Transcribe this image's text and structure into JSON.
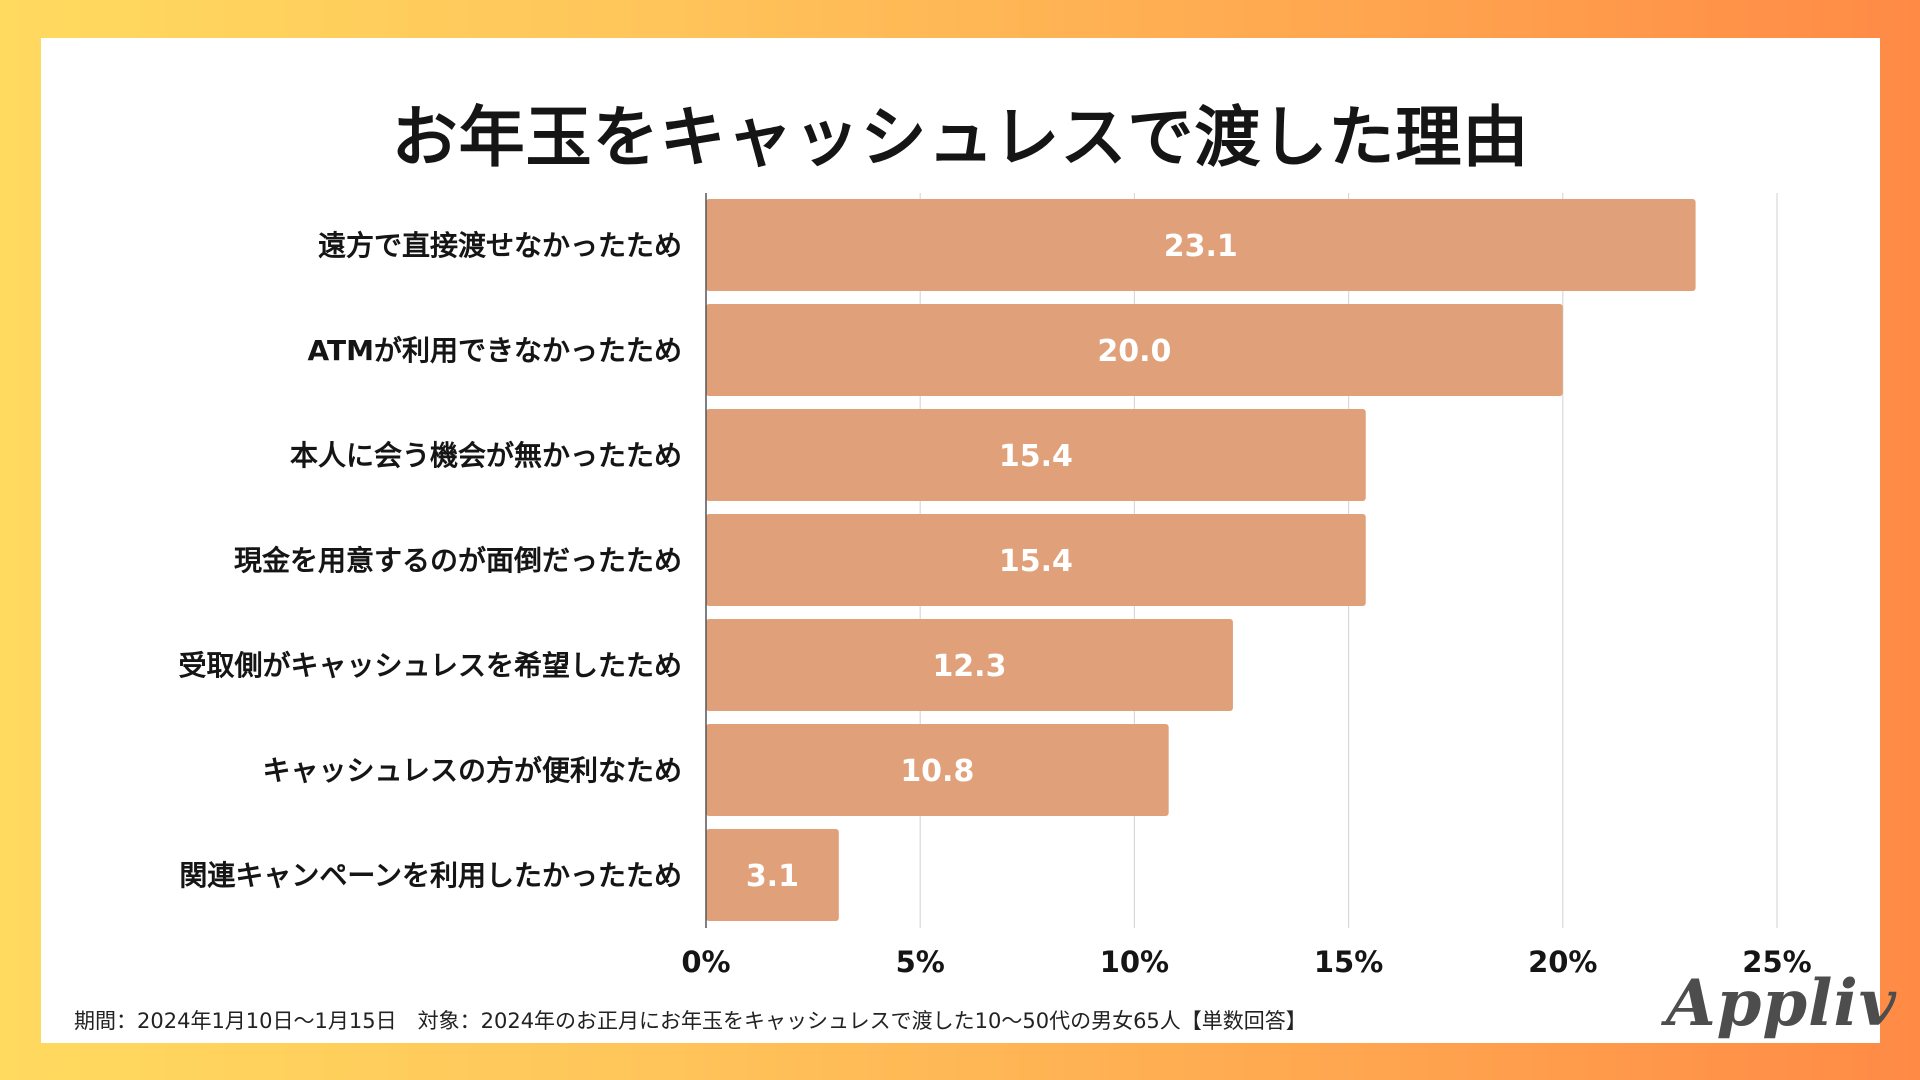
{
  "title": "お年玉をキャッシュレスで渡した理由",
  "footnote": "期間：2024年1月10日〜1月15日　対象：2024年のお正月にお年玉をキャッシュレスで渡した10〜50代の男女65人【単数回答】",
  "logo_text": "Appliv",
  "colors": {
    "bar": "#e0a07a",
    "bar_label": "#ffffff",
    "grid": "#d9d9d9",
    "axis": "#555555",
    "text": "#151515"
  },
  "chart_data": {
    "type": "bar",
    "orientation": "horizontal",
    "title": "お年玉をキャッシュレスで渡した理由",
    "categories": [
      "遠方で直接渡せなかったため",
      "ATMが利用できなかったため",
      "本人に会う機会が無かったため",
      "現金を用意するのが面倒だったため",
      "受取側がキャッシュレスを希望したため",
      "キャッシュレスの方が便利なため",
      "関連キャンペーンを利用したかったため"
    ],
    "values": [
      23.1,
      20.0,
      15.4,
      15.4,
      12.3,
      10.8,
      3.1
    ],
    "value_labels": [
      "23.1",
      "20.0",
      "15.4",
      "15.4",
      "12.3",
      "10.8",
      "3.1"
    ],
    "xlim": [
      0,
      25
    ],
    "xticks": [
      0,
      5,
      10,
      15,
      20,
      25
    ],
    "xtick_labels": [
      "0%",
      "5%",
      "10%",
      "15%",
      "20%",
      "25%"
    ],
    "xlabel": "",
    "ylabel": "",
    "grid": true
  }
}
